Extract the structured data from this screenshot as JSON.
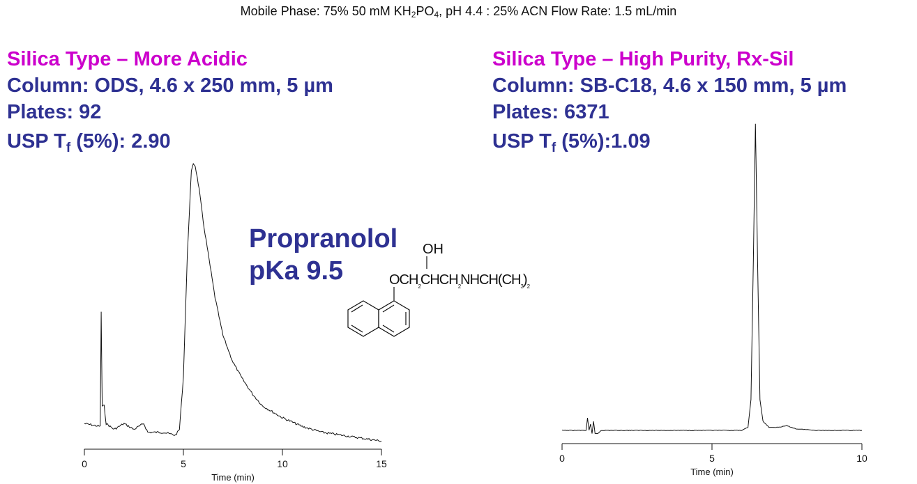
{
  "header": {
    "prefix": "Mobile Phase: 75% 50 mM KH",
    "sub1": "2",
    "mid": "PO",
    "sub2": "4",
    "suffix": ", pH 4.4 :  25% ACN Flow Rate: 1.5 mL/min"
  },
  "left_panel": {
    "silica": "Silica Type – More Acidic",
    "column": "Column: ODS, 4.6 x 250 mm, 5 µm",
    "plates": "Plates:  92",
    "usp_prefix": "USP T",
    "usp_sub": "f",
    "usp_value": " (5%): 2.90"
  },
  "right_panel": {
    "silica": "Silica Type – High Purity, Rx-Sil",
    "column": "Column:  SB-C18, 4.6 x 150 mm, 5 µm",
    "plates": "Plates:  6371",
    "usp_prefix": "USP T",
    "usp_sub": "f",
    "usp_value": " (5%):1.09"
  },
  "compound": {
    "name": "Propranolol",
    "pka": "pKa 9.5",
    "oh": "OH",
    "chain": "OCH",
    "chain_sub1": "2",
    "chain2": "CHCH",
    "chain_sub2": "2",
    "chain3": "NHCH(CH",
    "chain_sub3": "3",
    "chain4": ")",
    "chain_sub4": "2"
  },
  "chart_data": [
    {
      "type": "line",
      "name": "left-chromatogram",
      "xlabel": "Time (min)",
      "ylabel": "",
      "xlim": [
        0,
        15
      ],
      "xticks": [
        0,
        5,
        10,
        15
      ],
      "peaks": [
        {
          "time": 0.85,
          "note": "void spike"
        },
        {
          "time": 5.5,
          "note": "propranolol peak, tailing"
        }
      ],
      "series": [
        {
          "x": [
            0.0,
            0.8,
            0.85,
            0.9,
            1.0,
            1.1,
            1.3,
            1.5,
            2.0,
            2.5,
            3.0,
            3.2,
            4.0,
            4.6,
            4.8,
            5.0,
            5.2,
            5.4,
            5.5,
            5.6,
            5.8,
            6.0,
            6.3,
            6.6,
            7.0,
            7.5,
            8.0,
            8.5,
            9.0,
            10.0,
            11.0,
            12.0,
            13.0,
            14.0,
            15.0
          ],
          "y": [
            0.04,
            0.03,
            0.42,
            0.1,
            0.1,
            0.04,
            0.03,
            0.02,
            0.04,
            0.02,
            0.04,
            0.01,
            0.01,
            0.0,
            0.02,
            0.2,
            0.62,
            0.9,
            0.93,
            0.92,
            0.84,
            0.73,
            0.6,
            0.47,
            0.34,
            0.25,
            0.19,
            0.14,
            0.1,
            0.06,
            0.03,
            0.01,
            0.0,
            -0.01,
            -0.02
          ]
        }
      ]
    },
    {
      "type": "line",
      "name": "right-chromatogram",
      "xlabel": "Time (min)",
      "ylabel": "",
      "xlim": [
        0,
        10
      ],
      "xticks": [
        0,
        5,
        10
      ],
      "peaks": [
        {
          "time": 6.45,
          "note": "propranolol peak, sharp"
        }
      ],
      "series": [
        {
          "x": [
            0.0,
            0.8,
            0.85,
            0.9,
            0.95,
            1.0,
            1.05,
            1.1,
            1.2,
            1.3,
            2.0,
            4.0,
            6.0,
            6.2,
            6.3,
            6.38,
            6.45,
            6.52,
            6.6,
            6.7,
            6.9,
            7.2,
            7.5,
            7.8,
            8.5,
            10.0
          ],
          "y": [
            0.0,
            0.0,
            0.04,
            0.0,
            0.02,
            -0.01,
            0.03,
            -0.01,
            -0.01,
            0.0,
            0.0,
            0.0,
            0.0,
            0.01,
            0.1,
            0.55,
            1.0,
            0.55,
            0.1,
            0.03,
            0.01,
            0.01,
            0.015,
            0.005,
            0.0,
            0.0
          ]
        }
      ]
    }
  ]
}
